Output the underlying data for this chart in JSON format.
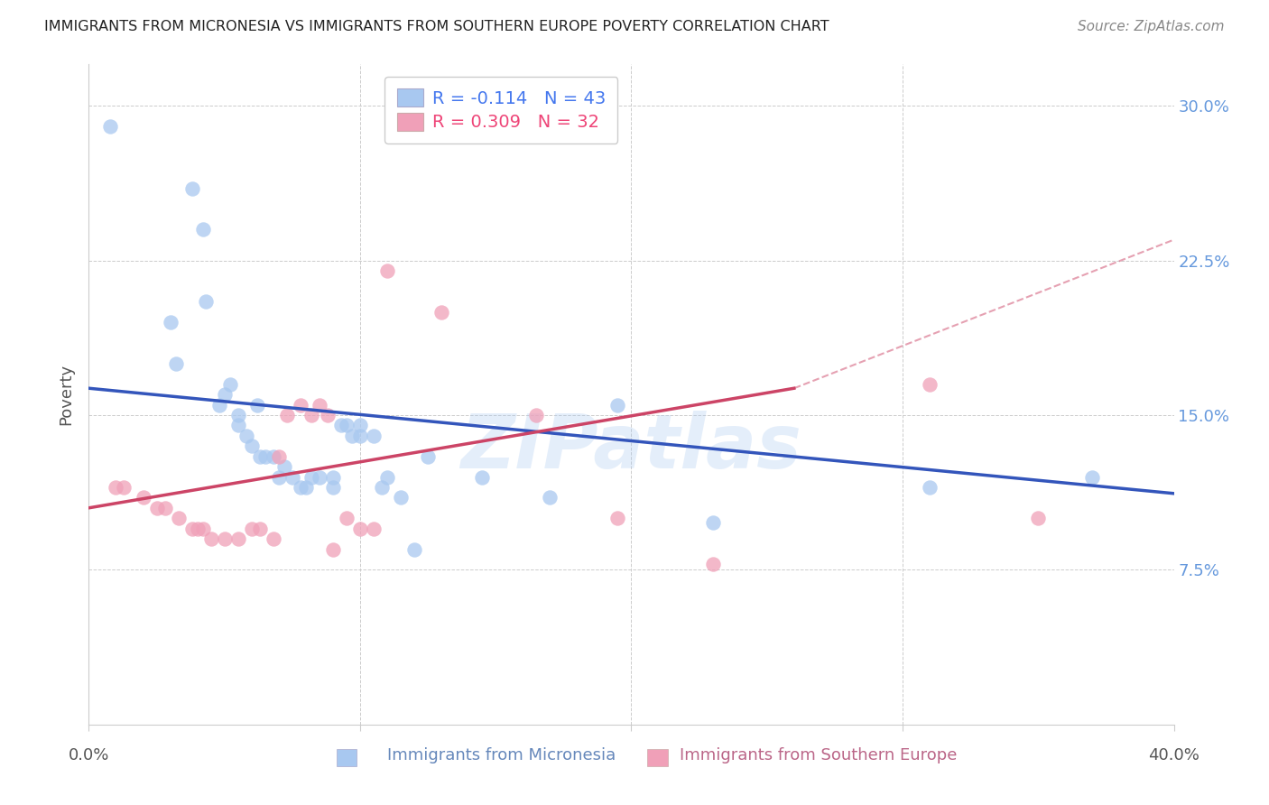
{
  "title": "IMMIGRANTS FROM MICRONESIA VS IMMIGRANTS FROM SOUTHERN EUROPE POVERTY CORRELATION CHART",
  "source": "Source: ZipAtlas.com",
  "ylabel": "Poverty",
  "yticks": [
    0.0,
    0.075,
    0.15,
    0.225,
    0.3
  ],
  "ytick_labels": [
    "",
    "7.5%",
    "15.0%",
    "22.5%",
    "30.0%"
  ],
  "xlim": [
    0.0,
    0.4
  ],
  "ylim": [
    0.0,
    0.32
  ],
  "legend_r1": "R = -0.114",
  "legend_n1": "N = 43",
  "legend_r2": "R = 0.309",
  "legend_n2": "N = 32",
  "blue_color": "#A8C8F0",
  "pink_color": "#F0A0B8",
  "blue_line_color": "#3355BB",
  "pink_line_color": "#CC4466",
  "blue_scatter": [
    [
      0.008,
      0.29
    ],
    [
      0.03,
      0.195
    ],
    [
      0.032,
      0.175
    ],
    [
      0.038,
      0.26
    ],
    [
      0.042,
      0.24
    ],
    [
      0.043,
      0.205
    ],
    [
      0.048,
      0.155
    ],
    [
      0.05,
      0.16
    ],
    [
      0.052,
      0.165
    ],
    [
      0.055,
      0.15
    ],
    [
      0.055,
      0.145
    ],
    [
      0.058,
      0.14
    ],
    [
      0.06,
      0.135
    ],
    [
      0.062,
      0.155
    ],
    [
      0.063,
      0.13
    ],
    [
      0.065,
      0.13
    ],
    [
      0.068,
      0.13
    ],
    [
      0.07,
      0.12
    ],
    [
      0.072,
      0.125
    ],
    [
      0.075,
      0.12
    ],
    [
      0.078,
      0.115
    ],
    [
      0.08,
      0.115
    ],
    [
      0.082,
      0.12
    ],
    [
      0.085,
      0.12
    ],
    [
      0.09,
      0.115
    ],
    [
      0.09,
      0.12
    ],
    [
      0.093,
      0.145
    ],
    [
      0.095,
      0.145
    ],
    [
      0.097,
      0.14
    ],
    [
      0.1,
      0.14
    ],
    [
      0.1,
      0.145
    ],
    [
      0.105,
      0.14
    ],
    [
      0.108,
      0.115
    ],
    [
      0.11,
      0.12
    ],
    [
      0.115,
      0.11
    ],
    [
      0.12,
      0.085
    ],
    [
      0.125,
      0.13
    ],
    [
      0.145,
      0.12
    ],
    [
      0.17,
      0.11
    ],
    [
      0.195,
      0.155
    ],
    [
      0.23,
      0.098
    ],
    [
      0.31,
      0.115
    ],
    [
      0.37,
      0.12
    ]
  ],
  "pink_scatter": [
    [
      0.01,
      0.115
    ],
    [
      0.013,
      0.115
    ],
    [
      0.02,
      0.11
    ],
    [
      0.025,
      0.105
    ],
    [
      0.028,
      0.105
    ],
    [
      0.033,
      0.1
    ],
    [
      0.038,
      0.095
    ],
    [
      0.04,
      0.095
    ],
    [
      0.042,
      0.095
    ],
    [
      0.045,
      0.09
    ],
    [
      0.05,
      0.09
    ],
    [
      0.055,
      0.09
    ],
    [
      0.06,
      0.095
    ],
    [
      0.063,
      0.095
    ],
    [
      0.068,
      0.09
    ],
    [
      0.07,
      0.13
    ],
    [
      0.073,
      0.15
    ],
    [
      0.078,
      0.155
    ],
    [
      0.082,
      0.15
    ],
    [
      0.085,
      0.155
    ],
    [
      0.088,
      0.15
    ],
    [
      0.09,
      0.085
    ],
    [
      0.095,
      0.1
    ],
    [
      0.1,
      0.095
    ],
    [
      0.105,
      0.095
    ],
    [
      0.11,
      0.22
    ],
    [
      0.13,
      0.2
    ],
    [
      0.165,
      0.15
    ],
    [
      0.195,
      0.1
    ],
    [
      0.23,
      0.078
    ],
    [
      0.31,
      0.165
    ],
    [
      0.35,
      0.1
    ]
  ],
  "blue_line": [
    [
      0.0,
      0.163
    ],
    [
      0.4,
      0.112
    ]
  ],
  "pink_line_solid": [
    [
      0.0,
      0.105
    ],
    [
      0.26,
      0.163
    ]
  ],
  "pink_line_dashed": [
    [
      0.26,
      0.163
    ],
    [
      0.4,
      0.235
    ]
  ]
}
